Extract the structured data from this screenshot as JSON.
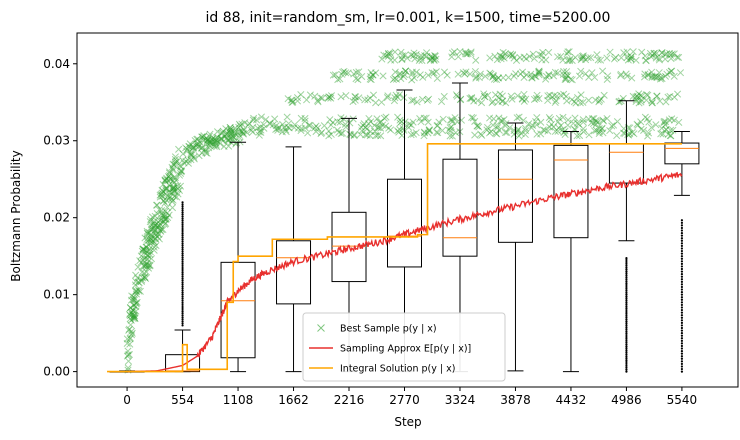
{
  "chart_data": {
    "type": "scatter",
    "title": "id 88, init=random_sm, lr=0.001, k=1500, time=5200.00",
    "xlabel": "Step",
    "ylabel": "Boltzmann Probability",
    "xlim": [
      -500,
      6100
    ],
    "ylim": [
      -0.002,
      0.044
    ],
    "xticks": [
      0,
      554,
      1108,
      1662,
      2216,
      2770,
      3324,
      3878,
      4432,
      4986,
      5540
    ],
    "yticks": [
      0.0,
      0.01,
      0.02,
      0.03,
      0.04
    ],
    "ytick_labels": [
      "0.00",
      "0.01",
      "0.02",
      "0.03",
      "0.04"
    ],
    "legend": {
      "placement": "lower-center",
      "entries": [
        {
          "label": "Best Sample p(y | x)",
          "color": "#2ca02c",
          "marker": "x"
        },
        {
          "label": "Sampling Approx E[p(y | x)]",
          "color": "#e8302e",
          "marker": "line"
        },
        {
          "label": "Integral Solution p(y | x)",
          "color": "#ffa500",
          "marker": "line"
        }
      ]
    },
    "series": [
      {
        "name": "Best Sample p(y | x)",
        "kind": "scatter-band",
        "color": "#2ca02c",
        "x_range": [
          0,
          5540
        ],
        "bands": [
          0.0312,
          0.0325,
          0.0355,
          0.0385,
          0.041
        ],
        "rise_end_step": 550,
        "rise_end_value": 0.027
      },
      {
        "name": "Sampling Approx E[p(y | x)]",
        "kind": "line",
        "color": "#e8302e",
        "x": [
          0,
          300,
          554,
          700,
          850,
          950,
          1000,
          1108,
          1250,
          1400,
          1662,
          2000,
          2216,
          2500,
          2770,
          3000,
          3324,
          3600,
          3878,
          4200,
          4432,
          4700,
          4986,
          5300,
          5540
        ],
        "y": [
          0.0,
          0.0001,
          0.0008,
          0.002,
          0.0045,
          0.0075,
          0.009,
          0.0105,
          0.012,
          0.013,
          0.0143,
          0.0153,
          0.016,
          0.0168,
          0.0178,
          0.0187,
          0.0198,
          0.0207,
          0.0215,
          0.0225,
          0.0231,
          0.0238,
          0.0244,
          0.0251,
          0.0256
        ]
      },
      {
        "name": "Integral Solution p(y | x)",
        "kind": "step",
        "color": "#ffa500",
        "x": [
          -200,
          554,
          554,
          600,
          600,
          1000,
          1000,
          1060,
          1060,
          1108,
          1108,
          1450,
          1450,
          2000,
          2000,
          2900,
          2900,
          3000,
          3000,
          5540
        ],
        "y": [
          0.0,
          0.0,
          0.0035,
          0.0035,
          0.0003,
          0.0003,
          0.009,
          0.009,
          0.0143,
          0.0143,
          0.015,
          0.015,
          0.0172,
          0.0172,
          0.0175,
          0.0175,
          0.0178,
          0.0178,
          0.0296,
          0.0296
        ]
      }
    ],
    "boxplots": [
      {
        "x": 0,
        "whislo": 0.0,
        "q1": 0.0,
        "med": 0.0,
        "q3": 0.0,
        "whishi": 0.0001,
        "fliers": [
          0.0
        ]
      },
      {
        "x": 554,
        "whislo": 0.0,
        "q1": 0.0,
        "med": 0.0001,
        "q3": 0.0022,
        "whishi": 0.0054,
        "fliers": [
          0.006,
          0.008,
          0.01,
          0.012,
          0.014,
          0.016,
          0.018,
          0.02,
          0.022
        ]
      },
      {
        "x": 1108,
        "whislo": 0.0,
        "q1": 0.0018,
        "med": 0.0092,
        "q3": 0.0142,
        "whishi": 0.0298,
        "fliers": []
      },
      {
        "x": 1662,
        "whislo": 0.0,
        "q1": 0.0088,
        "med": 0.0148,
        "q3": 0.017,
        "whishi": 0.0292,
        "fliers": []
      },
      {
        "x": 2216,
        "whislo": 0.0,
        "q1": 0.0117,
        "med": 0.0163,
        "q3": 0.0207,
        "whishi": 0.0329,
        "fliers": []
      },
      {
        "x": 2770,
        "whislo": 0.0,
        "q1": 0.0136,
        "med": 0.0176,
        "q3": 0.025,
        "whishi": 0.0366,
        "fliers": []
      },
      {
        "x": 3324,
        "whislo": 0.0,
        "q1": 0.015,
        "med": 0.0174,
        "q3": 0.0276,
        "whishi": 0.0375,
        "fliers": []
      },
      {
        "x": 3878,
        "whislo": 0.0001,
        "q1": 0.0168,
        "med": 0.025,
        "q3": 0.0288,
        "whishi": 0.0323,
        "fliers": []
      },
      {
        "x": 4432,
        "whislo": 0.0,
        "q1": 0.0174,
        "med": 0.0275,
        "q3": 0.0294,
        "whishi": 0.0312,
        "fliers": []
      },
      {
        "x": 4986,
        "whislo": 0.017,
        "q1": 0.0245,
        "med": 0.0285,
        "q3": 0.0296,
        "whishi": 0.0352,
        "fliers": [
          0.0,
          0.003,
          0.006,
          0.009,
          0.012,
          0.015
        ]
      },
      {
        "x": 5540,
        "whislo": 0.0229,
        "q1": 0.027,
        "med": 0.029,
        "q3": 0.0297,
        "whishi": 0.0312,
        "fliers": [
          0.0,
          0.004,
          0.008,
          0.012,
          0.016,
          0.02
        ]
      }
    ]
  }
}
